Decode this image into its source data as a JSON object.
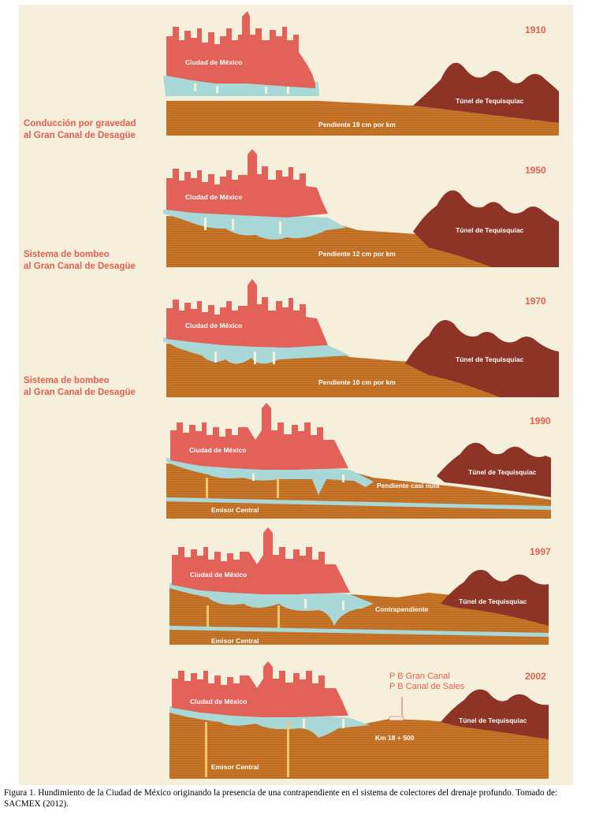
{
  "colors": {
    "background": "#f6efdc",
    "ground": "#c8762a",
    "ground_stripe": "#b9691f",
    "city": "#e2625a",
    "water": "#a8d8d8",
    "tunnel": "#8e3426",
    "accent_text": "#e06050",
    "pipe": "#f4c86a"
  },
  "panels": [
    {
      "year": "1910",
      "side_label": [
        "Conducción por gravedad",
        "al Gran Canal de Desagüe"
      ],
      "city_label": "Ciudad de México",
      "tunnel_label": "Túnel de Tequisquiac",
      "slope_label": "Pendiente 19 cm por km"
    },
    {
      "year": "1950",
      "side_label": [
        "Sistema de bombeo",
        "al Gran Canal de Desagüe"
      ],
      "city_label": "Ciudad de México",
      "tunnel_label": "Túnel de Tequisquiac",
      "slope_label": "Pendiente 12 cm por km"
    },
    {
      "year": "1970",
      "side_label": [
        "Sistema de bombeo",
        "al Gran Canal de Desagüe"
      ],
      "city_label": "Ciudad de México",
      "tunnel_label": "Túnel de Tequisquiac",
      "slope_label": "Pendiente 10 cm por km"
    },
    {
      "year": "1990",
      "city_label": "Ciudad de México",
      "tunnel_label": "Túnel de Tequisquiac",
      "slope_label": "Pendiente casi nula",
      "emisor_label": "Emisor Central"
    },
    {
      "year": "1997",
      "city_label": "Ciudad de México",
      "tunnel_label": "Túnel de Tequisquiac",
      "slope_label": "Contrapendiente",
      "emisor_label": "Emisor Central"
    },
    {
      "year": "2002",
      "city_label": "Ciudad de México",
      "tunnel_label": "Túnel de Tequisquiac",
      "slope_label": "Km 18 + 500",
      "emisor_label": "Emisor Central",
      "pump_labels": [
        "P B Gran Canal",
        "P B Canal de Sales"
      ]
    }
  ],
  "caption": "Figura 1. Hundimiento de la Ciudad de México originando la presencia de una contrapendiente en el sistema de colectores del drenaje profundo. Tomado de: SACMEX (2012)."
}
